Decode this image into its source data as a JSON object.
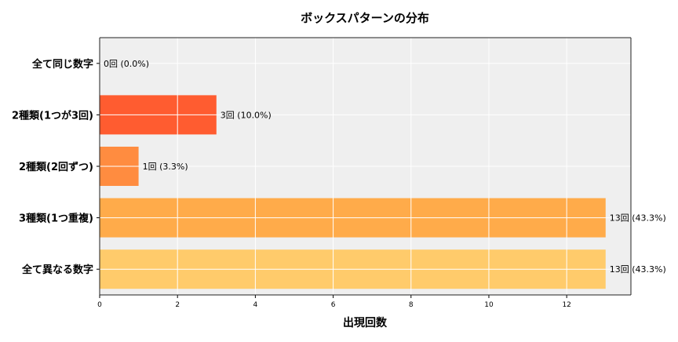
{
  "chart_data": {
    "type": "bar",
    "orientation": "horizontal",
    "title": "ボックスパターンの分布",
    "xlabel": "出現回数",
    "ylabel": "",
    "xlim": [
      0,
      13.65
    ],
    "xticks": [
      0,
      2,
      4,
      6,
      8,
      10,
      12
    ],
    "grid": true,
    "background": "#efefef",
    "categories": [
      "全て同じ数字",
      "2種類(1つが3回)",
      "2種類(2回ずつ)",
      "3種類(1つ重複)",
      "全て異なる数字"
    ],
    "values": [
      0,
      3,
      1,
      13,
      13
    ],
    "labels": [
      "0回 (0.0%)",
      "3回 (10.0%)",
      "1回 (3.3%)",
      "13回 (43.3%)",
      "13回 (43.3%)"
    ],
    "colors": [
      "#ff3d1f",
      "#ff5c30",
      "#ff8c40",
      "#ffab4a",
      "#ffcb6b"
    ]
  }
}
